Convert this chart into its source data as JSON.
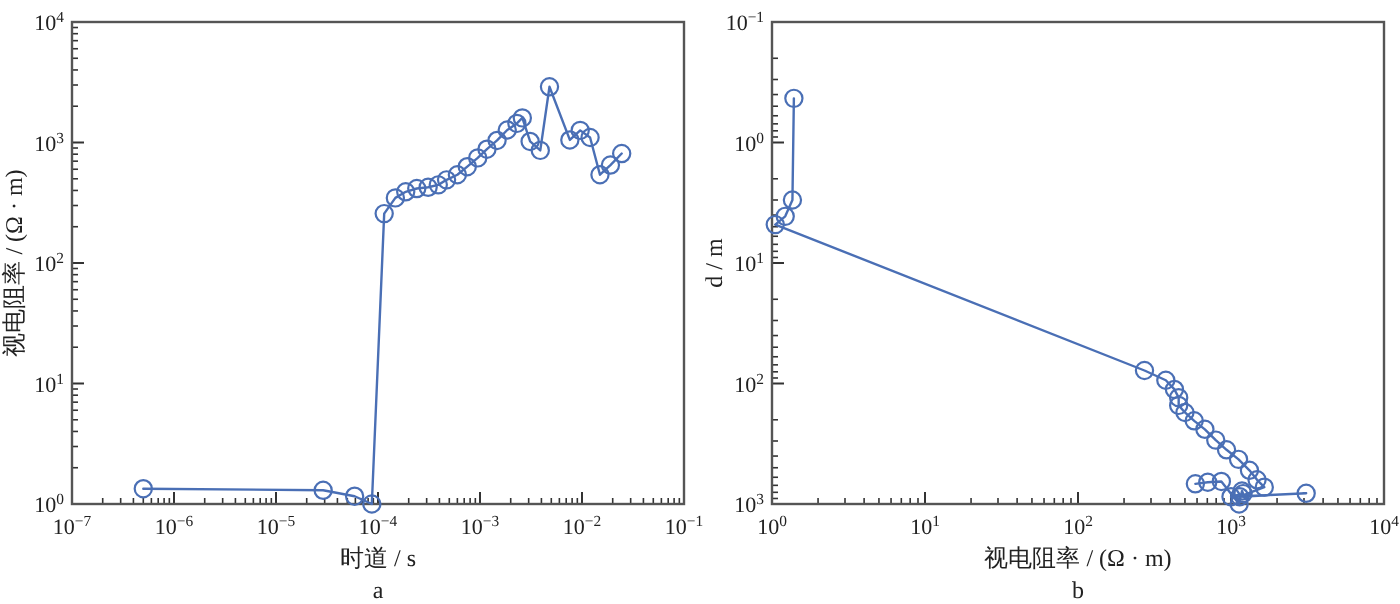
{
  "chart_data": [
    {
      "type": "line",
      "log": "xy",
      "marker": "circle",
      "grid": false,
      "xlabel": "时道 / s",
      "ylabel": "视电阻率 / (Ω · m)",
      "annotations": [
        "a"
      ],
      "xlim": [
        1e-07,
        0.1
      ],
      "ylim": [
        1,
        10000
      ],
      "xticks": [
        {
          "value": 1e-07,
          "label": "10$^{−7}$"
        },
        {
          "value": 1e-06,
          "label": "10$^{−6}$"
        },
        {
          "value": 1e-05,
          "label": "10$^{−5}$"
        },
        {
          "value": 0.0001,
          "label": "10$^{−4}$"
        },
        {
          "value": 0.001,
          "label": "10$^{−3}$"
        },
        {
          "value": 0.01,
          "label": "10$^{−2}$"
        },
        {
          "value": 0.1,
          "label": "10$^{−1}$"
        }
      ],
      "yticks": [
        {
          "value": 1,
          "label": "10$^{0}$"
        },
        {
          "value": 10,
          "label": "10$^{1}$"
        },
        {
          "value": 100,
          "label": "10$^{2}$"
        },
        {
          "value": 1000,
          "label": "10$^{3}$"
        },
        {
          "value": 10000,
          "label": "10$^{4}$"
        }
      ],
      "x": [
        5e-07,
        2.9e-05,
        5.9e-05,
        8.7e-05,
        0.000115,
        0.000148,
        0.000187,
        0.00024,
        0.00031,
        0.00039,
        0.00047,
        0.0006,
        0.00075,
        0.00095,
        0.00117,
        0.00147,
        0.00185,
        0.0023,
        0.0026,
        0.0031,
        0.0039,
        0.0048,
        0.0076,
        0.0096,
        0.012,
        0.015,
        0.019,
        0.0245
      ],
      "series": [
        {
          "color": "#4a6fb5",
          "values": [
            1.34,
            1.3,
            1.16,
            1.0,
            257,
            347,
            390,
            415,
            425,
            445,
            490,
            540,
            630,
            745,
            880,
            1040,
            1270,
            1440,
            1600,
            1020,
            860,
            2900,
            1050,
            1260,
            1100,
            540,
            650,
            810
          ]
        }
      ]
    },
    {
      "type": "line",
      "log": "xy",
      "marker": "circle",
      "grid": false,
      "xlabel": "视电阻率 / (Ω · m)",
      "ylabel": "d / m",
      "annotations": [
        "b"
      ],
      "xlim": [
        1,
        10000
      ],
      "ylim": [
        1000,
        0.1
      ],
      "xticks": [
        {
          "value": 1,
          "label": "10$^{0}$"
        },
        {
          "value": 10,
          "label": "10$^{1}$"
        },
        {
          "value": 100,
          "label": "10$^{2}$"
        },
        {
          "value": 1000,
          "label": "10$^{3}$"
        },
        {
          "value": 10000,
          "label": "10$^{4}$"
        }
      ],
      "yticks": [
        {
          "value": 0.1,
          "label": "10$^{−1}$"
        },
        {
          "value": 1,
          "label": "10$^{0}$"
        },
        {
          "value": 10,
          "label": "10$^{1}$"
        },
        {
          "value": 100,
          "label": "10$^{2}$"
        },
        {
          "value": 1000,
          "label": "10$^{3}$"
        }
      ],
      "series": [
        {
          "color": "#4a6fb5",
          "x": [
            1.39,
            1.36,
            1.22,
            1.05,
            272,
            375,
            427,
            455,
            455,
            500,
            575,
            675,
            795,
            935,
            1120,
            1320,
            1480,
            1650,
            1140,
            3100,
            1000,
            1200,
            1180,
            1130,
            865,
            705,
            585
          ],
          "values": [
            0.43,
            3.0,
            4.1,
            4.8,
            78,
            94,
            112,
            131,
            152,
            174,
            204,
            240,
            295,
            355,
            426,
            525,
            630,
            725,
            870,
            815,
            870,
            820,
            780,
            1000,
            650,
            660,
            680
          ]
        }
      ]
    }
  ]
}
